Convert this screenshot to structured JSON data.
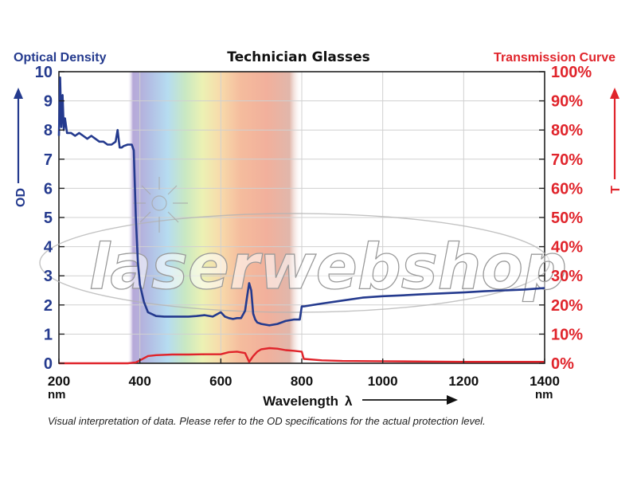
{
  "chart_data": {
    "type": "line",
    "title": "Technician Glasses",
    "left_axis_label": "Optical Density",
    "left_axis_symbol": "OD",
    "right_axis_label": "Transmission Curve",
    "right_axis_symbol": "T",
    "xlabel": "Wavelength",
    "xlabel_symbol": "λ",
    "x_unit": "nm",
    "xlim": [
      200,
      1400
    ],
    "ylim_left": [
      0,
      10
    ],
    "ylim_right": [
      0,
      100
    ],
    "x_ticks": [
      "200",
      "400",
      "600",
      "800",
      "1000",
      "1200",
      "1400"
    ],
    "left_ticks": [
      "0",
      "1",
      "2",
      "3",
      "4",
      "5",
      "6",
      "7",
      "8",
      "9",
      "10"
    ],
    "right_ticks": [
      "0%",
      "10%",
      "20%",
      "30%",
      "40%",
      "50%",
      "60%",
      "70%",
      "80%",
      "90%",
      "100%"
    ],
    "grid": true,
    "spectrum_band_nm": [
      370,
      800
    ],
    "colors": {
      "od": "#243a8e",
      "transmission": "#e0242b",
      "grid": "#d0d0d0"
    },
    "series": [
      {
        "axis": "left",
        "x": [
          200,
          203,
          206,
          209,
          212,
          215,
          220,
          230,
          240,
          250,
          260,
          270,
          280,
          290,
          300,
          310,
          320,
          330,
          340,
          345,
          350,
          355,
          360,
          370,
          380,
          385,
          390,
          395,
          400,
          410,
          420,
          440,
          460,
          480,
          500,
          520,
          540,
          560,
          580,
          600,
          610,
          620,
          630,
          640,
          650,
          660,
          665,
          670,
          675,
          680,
          685,
          690,
          700,
          720,
          740,
          760,
          780,
          795,
          800,
          805,
          850,
          900,
          950,
          1000,
          1050,
          1100,
          1150,
          1200,
          1250,
          1300,
          1350,
          1400
        ],
        "y": [
          7.8,
          9.8,
          8.1,
          9.2,
          8.0,
          8.4,
          7.9,
          7.9,
          7.8,
          7.9,
          7.8,
          7.7,
          7.8,
          7.7,
          7.6,
          7.6,
          7.5,
          7.5,
          7.6,
          8.0,
          7.4,
          7.4,
          7.45,
          7.5,
          7.5,
          7.3,
          5.0,
          3.5,
          2.7,
          2.1,
          1.75,
          1.62,
          1.6,
          1.6,
          1.6,
          1.6,
          1.62,
          1.65,
          1.6,
          1.75,
          1.6,
          1.55,
          1.52,
          1.55,
          1.55,
          1.8,
          2.3,
          2.75,
          2.5,
          1.7,
          1.5,
          1.4,
          1.35,
          1.3,
          1.35,
          1.45,
          1.5,
          1.5,
          1.95,
          1.95,
          2.05,
          2.15,
          2.25,
          2.3,
          2.33,
          2.37,
          2.4,
          2.43,
          2.47,
          2.5,
          2.53,
          2.58
        ]
      },
      {
        "axis": "right",
        "x": [
          200,
          300,
          370,
          390,
          400,
          420,
          440,
          480,
          520,
          560,
          600,
          620,
          640,
          660,
          665,
          670,
          675,
          680,
          690,
          700,
          720,
          740,
          760,
          780,
          800,
          805,
          850,
          900,
          1000,
          1100,
          1200,
          1300,
          1400
        ],
        "y": [
          0,
          0,
          0,
          0.3,
          1.0,
          2.5,
          2.8,
          3.0,
          3.0,
          3.1,
          3.1,
          3.8,
          4.0,
          3.5,
          2.0,
          0.5,
          1.5,
          2.5,
          4.0,
          4.8,
          5.2,
          5.0,
          4.5,
          4.3,
          4.0,
          1.5,
          1.0,
          0.8,
          0.7,
          0.6,
          0.5,
          0.5,
          0.5
        ]
      }
    ]
  },
  "watermark": "laserwebshop",
  "caption": "Visual interpretation of data. Please refer to the OD specifications for the actual protection level."
}
